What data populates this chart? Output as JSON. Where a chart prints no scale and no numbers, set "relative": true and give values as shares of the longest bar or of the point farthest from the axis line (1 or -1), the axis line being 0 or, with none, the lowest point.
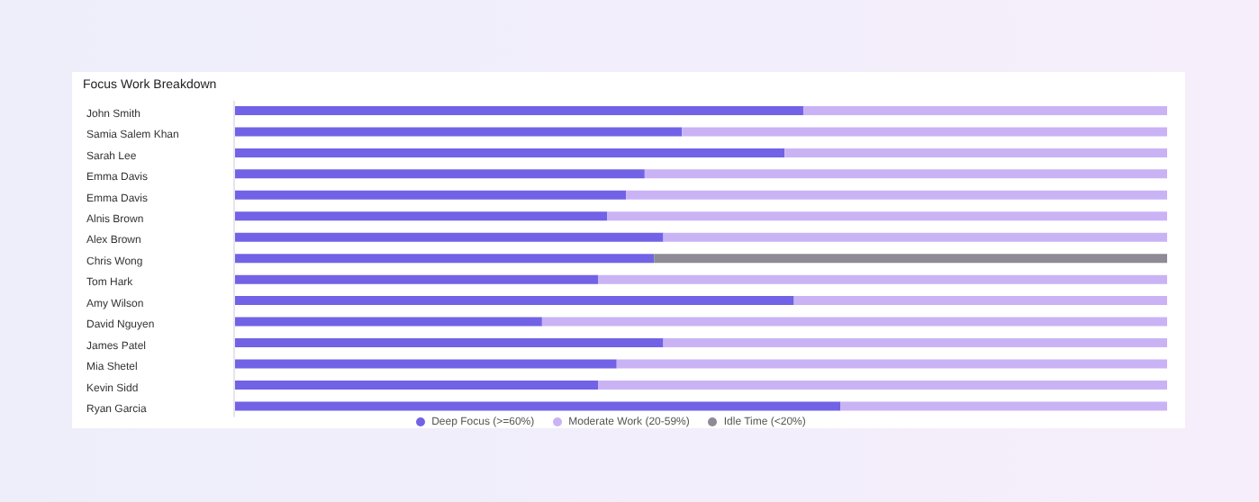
{
  "chart_data": {
    "type": "bar",
    "orientation": "horizontal",
    "stacked": true,
    "relative": true,
    "title": "Focus Work Breakdown",
    "legend": "bottom",
    "grid": false,
    "categories": [
      "John Smith",
      "Samia Salem Khan",
      "Sarah Lee",
      "Emma Davis",
      "Emma Davis",
      "Alnis Brown",
      "Alex Brown",
      "Chris Wong",
      "Tom Hark",
      "Amy Wilson",
      "David Nguyen",
      "James Patel",
      "Mia Shetel",
      "Kevin Sidd",
      "Ryan Garcia"
    ],
    "series": [
      {
        "name": "Deep Focus (>=60%)",
        "color": "#7262e6",
        "values": [
          0.61,
          0.48,
          0.59,
          0.44,
          0.42,
          0.4,
          0.46,
          0.45,
          0.39,
          0.6,
          0.33,
          0.46,
          0.41,
          0.39,
          0.65
        ]
      },
      {
        "name": "Moderate Work (20-59%)",
        "color": "#c9b3f5",
        "values": [
          0.39,
          0.52,
          0.41,
          0.56,
          0.58,
          0.6,
          0.54,
          null,
          0.61,
          0.4,
          0.67,
          0.54,
          0.59,
          0.61,
          0.35
        ]
      },
      {
        "name": "Idle Time (<20%)",
        "color": "#8e8b96",
        "values": [
          null,
          null,
          null,
          null,
          null,
          null,
          null,
          0.55,
          null,
          null,
          null,
          null,
          null,
          null,
          null
        ]
      }
    ]
  }
}
